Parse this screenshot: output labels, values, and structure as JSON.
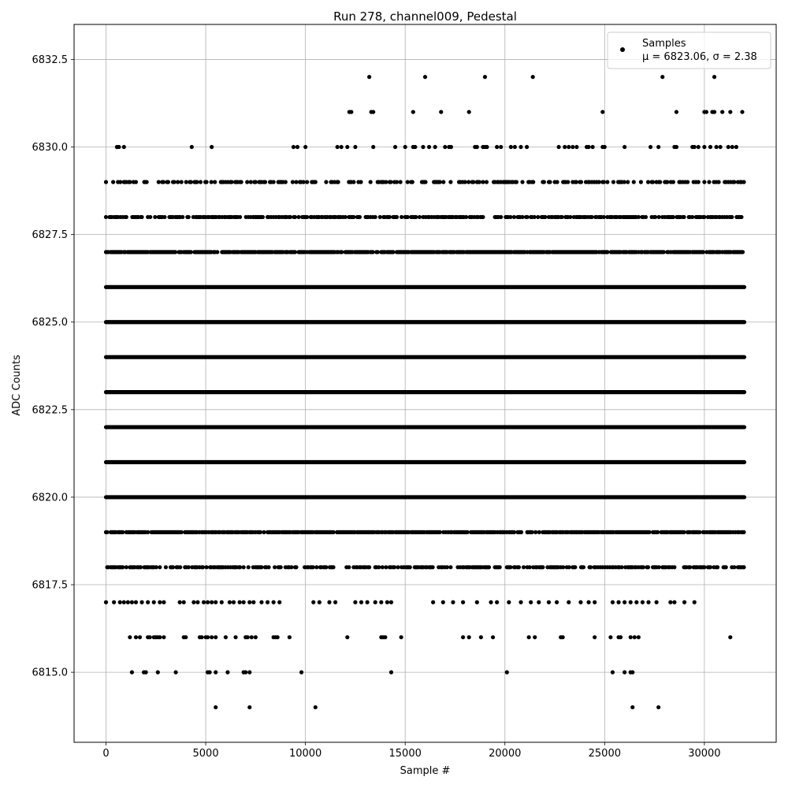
{
  "chart_data": {
    "type": "scatter",
    "title": "Run 278, channel009, Pedestal",
    "xlabel": "Sample #",
    "ylabel": "ADC Counts",
    "xlim": [
      -1600,
      33600
    ],
    "ylim": [
      6813.0,
      6833.5
    ],
    "xticks": [
      0,
      5000,
      10000,
      15000,
      20000,
      25000,
      30000
    ],
    "xtick_labels": [
      "0",
      "5000",
      "10000",
      "15000",
      "20000",
      "25000",
      "30000"
    ],
    "yticks": [
      6815.0,
      6817.5,
      6820.0,
      6822.5,
      6825.0,
      6827.5,
      6830.0,
      6832.5
    ],
    "ytick_labels": [
      "6815.0",
      "6817.5",
      "6820.0",
      "6822.5",
      "6825.0",
      "6827.5",
      "6830.0",
      "6832.5"
    ],
    "grid": true,
    "legend_position": "top-right",
    "marker_color": "#000000",
    "n_samples": 32000,
    "series": [
      {
        "name": "Samples",
        "legend_stats": "μ = 6823.06, σ = 2.38",
        "levels": [
          {
            "y": 6832,
            "x": [
              13200,
              16000,
              19000,
              21400,
              27900,
              30500
            ]
          },
          {
            "y": 6831,
            "x": [
              12200,
              12300,
              13300,
              13400,
              15400,
              16800,
              18200,
              24900,
              28600,
              30000,
              30100,
              30400,
              30500,
              30900,
              31300,
              31900
            ]
          },
          {
            "y": 6830,
            "x": [
              550,
              650,
              900,
              4300,
              5300,
              9400,
              9600,
              10000,
              11600,
              11800,
              12100,
              12500,
              13400,
              14500,
              15000,
              15400,
              15500,
              15900,
              16200,
              16500,
              17000,
              17200,
              17300,
              18500,
              18600,
              18900,
              19000,
              19100,
              19600,
              19800,
              20300,
              20500,
              20800,
              21100,
              22700,
              23000,
              23200,
              23400,
              23600,
              24100,
              24200,
              24400,
              24900,
              25000,
              26000,
              27300,
              27700,
              28500,
              28600,
              29400,
              29500,
              29700,
              30000,
              30300,
              30600,
              30800,
              31200,
              31400,
              31600
            ]
          },
          {
            "y": 6814,
            "x": [
              5500,
              7200,
              10500,
              26400,
              27700
            ]
          },
          {
            "y": 6815,
            "x": [
              1300,
              1900,
              2000,
              2600,
              3500,
              5100,
              5200,
              5500,
              6100,
              6900,
              7000,
              7200,
              9800,
              14300,
              20100,
              25400,
              26000,
              26300,
              26400
            ]
          },
          {
            "y": 6816,
            "x": [
              1200,
              1500,
              1700,
              2100,
              2200,
              2400,
              2500,
              2600,
              2700,
              2900,
              3900,
              4000,
              4700,
              4800,
              5000,
              5100,
              5300,
              5500,
              6000,
              6500,
              7000,
              7100,
              7300,
              7500,
              8400,
              8500,
              8600,
              9200,
              12100,
              13800,
              13900,
              14000,
              14800,
              17900,
              18200,
              18800,
              19400,
              21200,
              21500,
              22800,
              22900,
              24500,
              25300,
              25700,
              25800,
              26300,
              26500,
              26700,
              31300
            ]
          },
          {
            "y": 6817,
            "x": [
              0,
              400,
              700,
              900,
              1100,
              1300,
              1500,
              1800,
              2100,
              2400,
              2700,
              2900,
              3700,
              3900,
              4400,
              4600,
              4900,
              5100,
              5300,
              5500,
              5800,
              6200,
              6400,
              6700,
              6900,
              7200,
              7400,
              7800,
              8100,
              8400,
              8700,
              10400,
              10700,
              11200,
              11500,
              12500,
              12800,
              13100,
              13500,
              13800,
              14100,
              14300,
              16400,
              16900,
              17400,
              17900,
              18600,
              19300,
              19600,
              20200,
              20800,
              21300,
              21700,
              22200,
              22600,
              23200,
              23800,
              24200,
              24500,
              25400,
              25700,
              26000,
              26300,
              26600,
              26900,
              27200,
              27600,
              28300,
              28500,
              29000,
              29500
            ]
          },
          {
            "y": 6818,
            "x_range": [
              0,
              32000
            ],
            "dense": false,
            "density": 0.55
          },
          {
            "y": 6819,
            "x_range": [
              0,
              32000
            ],
            "dense": false,
            "density": 0.8
          },
          {
            "y": 6820,
            "x_range": [
              0,
              32000
            ],
            "dense": true
          },
          {
            "y": 6821,
            "x_range": [
              0,
              32000
            ],
            "dense": true
          },
          {
            "y": 6822,
            "x_range": [
              0,
              32000
            ],
            "dense": true
          },
          {
            "y": 6823,
            "x_range": [
              0,
              32000
            ],
            "dense": true
          },
          {
            "y": 6824,
            "x_range": [
              0,
              32000
            ],
            "dense": true
          },
          {
            "y": 6825,
            "x_range": [
              0,
              32000
            ],
            "dense": true
          },
          {
            "y": 6826,
            "x_range": [
              0,
              32000
            ],
            "dense": true
          },
          {
            "y": 6827,
            "x_range": [
              0,
              32000
            ],
            "dense": false,
            "density": 0.85
          },
          {
            "y": 6828,
            "x_range": [
              0,
              32000
            ],
            "dense": false,
            "density": 0.6
          },
          {
            "y": 6829,
            "x_range": [
              0,
              32000
            ],
            "dense": false,
            "density": 0.42
          }
        ]
      }
    ]
  }
}
